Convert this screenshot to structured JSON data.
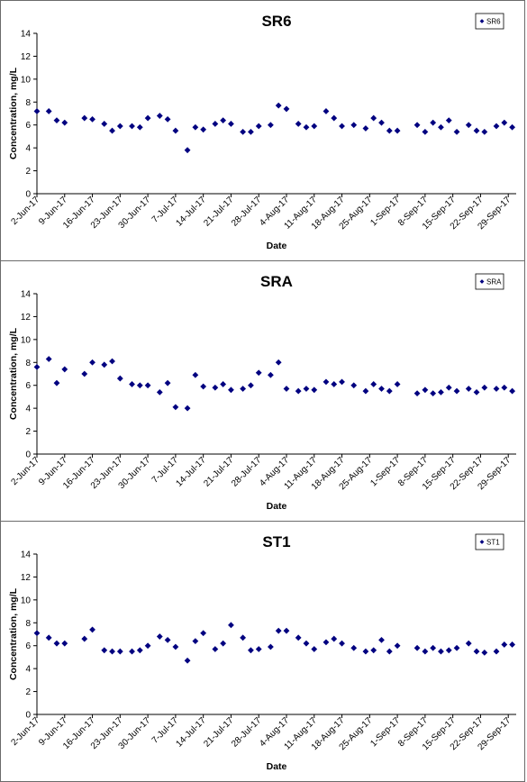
{
  "chart_data": [
    {
      "type": "scatter",
      "title": "SR6",
      "xlabel": "Date",
      "ylabel": "Concentration, mg/L",
      "ylim": [
        0,
        14
      ],
      "yticks": [
        0,
        2,
        4,
        6,
        8,
        10,
        12,
        14
      ],
      "xlim": [
        "2017-06-02",
        "2017-10-01"
      ],
      "xticks": [
        "2-Jun-17",
        "9-Jun-17",
        "16-Jun-17",
        "23-Jun-17",
        "30-Jun-17",
        "7-Jul-17",
        "14-Jul-17",
        "21-Jul-17",
        "28-Jul-17",
        "4-Aug-17",
        "11-Aug-17",
        "18-Aug-17",
        "25-Aug-17",
        "1-Sep-17",
        "8-Sep-17",
        "15-Sep-17",
        "22-Sep-17",
        "29-Sep-17"
      ],
      "grid": false,
      "legend_position": "top-right",
      "marker": "diamond",
      "marker_color": "#000080",
      "series": [
        {
          "name": "SR6",
          "points": [
            [
              "2017-06-02",
              7.2
            ],
            [
              "2017-06-05",
              7.2
            ],
            [
              "2017-06-07",
              6.4
            ],
            [
              "2017-06-09",
              6.2
            ],
            [
              "2017-06-14",
              6.6
            ],
            [
              "2017-06-16",
              6.5
            ],
            [
              "2017-06-19",
              6.1
            ],
            [
              "2017-06-21",
              5.5
            ],
            [
              "2017-06-23",
              5.9
            ],
            [
              "2017-06-26",
              5.9
            ],
            [
              "2017-06-28",
              5.8
            ],
            [
              "2017-06-30",
              6.6
            ],
            [
              "2017-07-03",
              6.8
            ],
            [
              "2017-07-05",
              6.5
            ],
            [
              "2017-07-07",
              5.5
            ],
            [
              "2017-07-10",
              3.8
            ],
            [
              "2017-07-12",
              5.8
            ],
            [
              "2017-07-14",
              5.6
            ],
            [
              "2017-07-17",
              6.1
            ],
            [
              "2017-07-19",
              6.4
            ],
            [
              "2017-07-21",
              6.1
            ],
            [
              "2017-07-24",
              5.4
            ],
            [
              "2017-07-26",
              5.4
            ],
            [
              "2017-07-28",
              5.9
            ],
            [
              "2017-07-31",
              6.0
            ],
            [
              "2017-08-02",
              7.7
            ],
            [
              "2017-08-04",
              7.4
            ],
            [
              "2017-08-07",
              6.1
            ],
            [
              "2017-08-09",
              5.8
            ],
            [
              "2017-08-11",
              5.9
            ],
            [
              "2017-08-14",
              7.2
            ],
            [
              "2017-08-16",
              6.6
            ],
            [
              "2017-08-18",
              5.9
            ],
            [
              "2017-08-21",
              6.0
            ],
            [
              "2017-08-24",
              5.7
            ],
            [
              "2017-08-26",
              6.6
            ],
            [
              "2017-08-28",
              6.2
            ],
            [
              "2017-08-30",
              5.5
            ],
            [
              "2017-09-01",
              5.5
            ],
            [
              "2017-09-06",
              6.0
            ],
            [
              "2017-09-08",
              5.4
            ],
            [
              "2017-09-10",
              6.2
            ],
            [
              "2017-09-12",
              5.8
            ],
            [
              "2017-09-14",
              6.4
            ],
            [
              "2017-09-16",
              5.4
            ],
            [
              "2017-09-19",
              6.0
            ],
            [
              "2017-09-21",
              5.5
            ],
            [
              "2017-09-23",
              5.4
            ],
            [
              "2017-09-26",
              5.9
            ],
            [
              "2017-09-28",
              6.2
            ],
            [
              "2017-09-30",
              5.8
            ]
          ]
        }
      ]
    },
    {
      "type": "scatter",
      "title": "SRA",
      "xlabel": "Date",
      "ylabel": "Concentration, mg/L",
      "ylim": [
        0,
        14
      ],
      "yticks": [
        0,
        2,
        4,
        6,
        8,
        10,
        12,
        14
      ],
      "xlim": [
        "2017-06-02",
        "2017-10-01"
      ],
      "xticks": [
        "2-Jun-17",
        "9-Jun-17",
        "16-Jun-17",
        "23-Jun-17",
        "30-Jun-17",
        "7-Jul-17",
        "14-Jul-17",
        "21-Jul-17",
        "28-Jul-17",
        "4-Aug-17",
        "11-Aug-17",
        "18-Aug-17",
        "25-Aug-17",
        "1-Sep-17",
        "8-Sep-17",
        "15-Sep-17",
        "22-Sep-17",
        "29-Sep-17"
      ],
      "grid": false,
      "legend_position": "top-right",
      "marker": "diamond",
      "marker_color": "#000080",
      "series": [
        {
          "name": "SRA",
          "points": [
            [
              "2017-06-02",
              7.6
            ],
            [
              "2017-06-05",
              8.3
            ],
            [
              "2017-06-07",
              6.2
            ],
            [
              "2017-06-09",
              7.4
            ],
            [
              "2017-06-14",
              7.0
            ],
            [
              "2017-06-16",
              8.0
            ],
            [
              "2017-06-19",
              7.8
            ],
            [
              "2017-06-21",
              8.1
            ],
            [
              "2017-06-23",
              6.6
            ],
            [
              "2017-06-26",
              6.1
            ],
            [
              "2017-06-28",
              6.0
            ],
            [
              "2017-06-30",
              6.0
            ],
            [
              "2017-07-03",
              5.4
            ],
            [
              "2017-07-05",
              6.2
            ],
            [
              "2017-07-07",
              4.1
            ],
            [
              "2017-07-10",
              4.0
            ],
            [
              "2017-07-12",
              6.9
            ],
            [
              "2017-07-14",
              5.9
            ],
            [
              "2017-07-17",
              5.8
            ],
            [
              "2017-07-19",
              6.1
            ],
            [
              "2017-07-21",
              5.6
            ],
            [
              "2017-07-24",
              5.7
            ],
            [
              "2017-07-26",
              6.0
            ],
            [
              "2017-07-28",
              7.1
            ],
            [
              "2017-07-31",
              6.9
            ],
            [
              "2017-08-02",
              8.0
            ],
            [
              "2017-08-04",
              5.7
            ],
            [
              "2017-08-07",
              5.5
            ],
            [
              "2017-08-09",
              5.7
            ],
            [
              "2017-08-11",
              5.6
            ],
            [
              "2017-08-14",
              6.3
            ],
            [
              "2017-08-16",
              6.1
            ],
            [
              "2017-08-18",
              6.3
            ],
            [
              "2017-08-21",
              6.0
            ],
            [
              "2017-08-24",
              5.5
            ],
            [
              "2017-08-26",
              6.1
            ],
            [
              "2017-08-28",
              5.7
            ],
            [
              "2017-08-30",
              5.5
            ],
            [
              "2017-09-01",
              6.1
            ],
            [
              "2017-09-06",
              5.3
            ],
            [
              "2017-09-08",
              5.6
            ],
            [
              "2017-09-10",
              5.3
            ],
            [
              "2017-09-12",
              5.4
            ],
            [
              "2017-09-14",
              5.8
            ],
            [
              "2017-09-16",
              5.5
            ],
            [
              "2017-09-19",
              5.7
            ],
            [
              "2017-09-21",
              5.4
            ],
            [
              "2017-09-23",
              5.8
            ],
            [
              "2017-09-26",
              5.7
            ],
            [
              "2017-09-28",
              5.8
            ],
            [
              "2017-09-30",
              5.5
            ]
          ]
        }
      ]
    },
    {
      "type": "scatter",
      "title": "ST1",
      "xlabel": "Date",
      "ylabel": "Concentration, mg/L",
      "ylim": [
        0,
        14
      ],
      "yticks": [
        0,
        2,
        4,
        6,
        8,
        10,
        12,
        14
      ],
      "xlim": [
        "2017-06-02",
        "2017-10-01"
      ],
      "xticks": [
        "2-Jun-17",
        "9-Jun-17",
        "16-Jun-17",
        "23-Jun-17",
        "30-Jun-17",
        "7-Jul-17",
        "14-Jul-17",
        "21-Jul-17",
        "28-Jul-17",
        "4-Aug-17",
        "11-Aug-17",
        "18-Aug-17",
        "25-Aug-17",
        "1-Sep-17",
        "8-Sep-17",
        "15-Sep-17",
        "22-Sep-17",
        "29-Sep-17"
      ],
      "grid": false,
      "legend_position": "top-right",
      "marker": "diamond",
      "marker_color": "#000080",
      "series": [
        {
          "name": "ST1",
          "points": [
            [
              "2017-06-02",
              7.1
            ],
            [
              "2017-06-05",
              6.7
            ],
            [
              "2017-06-07",
              6.2
            ],
            [
              "2017-06-09",
              6.2
            ],
            [
              "2017-06-14",
              6.6
            ],
            [
              "2017-06-16",
              7.4
            ],
            [
              "2017-06-19",
              5.6
            ],
            [
              "2017-06-21",
              5.5
            ],
            [
              "2017-06-23",
              5.5
            ],
            [
              "2017-06-26",
              5.5
            ],
            [
              "2017-06-28",
              5.6
            ],
            [
              "2017-06-30",
              6.0
            ],
            [
              "2017-07-03",
              6.8
            ],
            [
              "2017-07-05",
              6.5
            ],
            [
              "2017-07-07",
              5.9
            ],
            [
              "2017-07-10",
              4.7
            ],
            [
              "2017-07-12",
              6.4
            ],
            [
              "2017-07-14",
              7.1
            ],
            [
              "2017-07-17",
              5.7
            ],
            [
              "2017-07-19",
              6.2
            ],
            [
              "2017-07-21",
              7.8
            ],
            [
              "2017-07-24",
              6.7
            ],
            [
              "2017-07-26",
              5.6
            ],
            [
              "2017-07-28",
              5.7
            ],
            [
              "2017-07-31",
              5.9
            ],
            [
              "2017-08-02",
              7.3
            ],
            [
              "2017-08-04",
              7.3
            ],
            [
              "2017-08-07",
              6.7
            ],
            [
              "2017-08-09",
              6.2
            ],
            [
              "2017-08-11",
              5.7
            ],
            [
              "2017-08-14",
              6.3
            ],
            [
              "2017-08-16",
              6.6
            ],
            [
              "2017-08-18",
              6.2
            ],
            [
              "2017-08-21",
              5.8
            ],
            [
              "2017-08-24",
              5.5
            ],
            [
              "2017-08-26",
              5.6
            ],
            [
              "2017-08-28",
              6.5
            ],
            [
              "2017-08-30",
              5.5
            ],
            [
              "2017-09-01",
              6.0
            ],
            [
              "2017-09-06",
              5.8
            ],
            [
              "2017-09-08",
              5.5
            ],
            [
              "2017-09-10",
              5.8
            ],
            [
              "2017-09-12",
              5.5
            ],
            [
              "2017-09-14",
              5.6
            ],
            [
              "2017-09-16",
              5.8
            ],
            [
              "2017-09-19",
              6.2
            ],
            [
              "2017-09-21",
              5.5
            ],
            [
              "2017-09-23",
              5.4
            ],
            [
              "2017-09-26",
              5.5
            ],
            [
              "2017-09-28",
              6.1
            ],
            [
              "2017-09-30",
              6.1
            ]
          ]
        }
      ]
    }
  ]
}
